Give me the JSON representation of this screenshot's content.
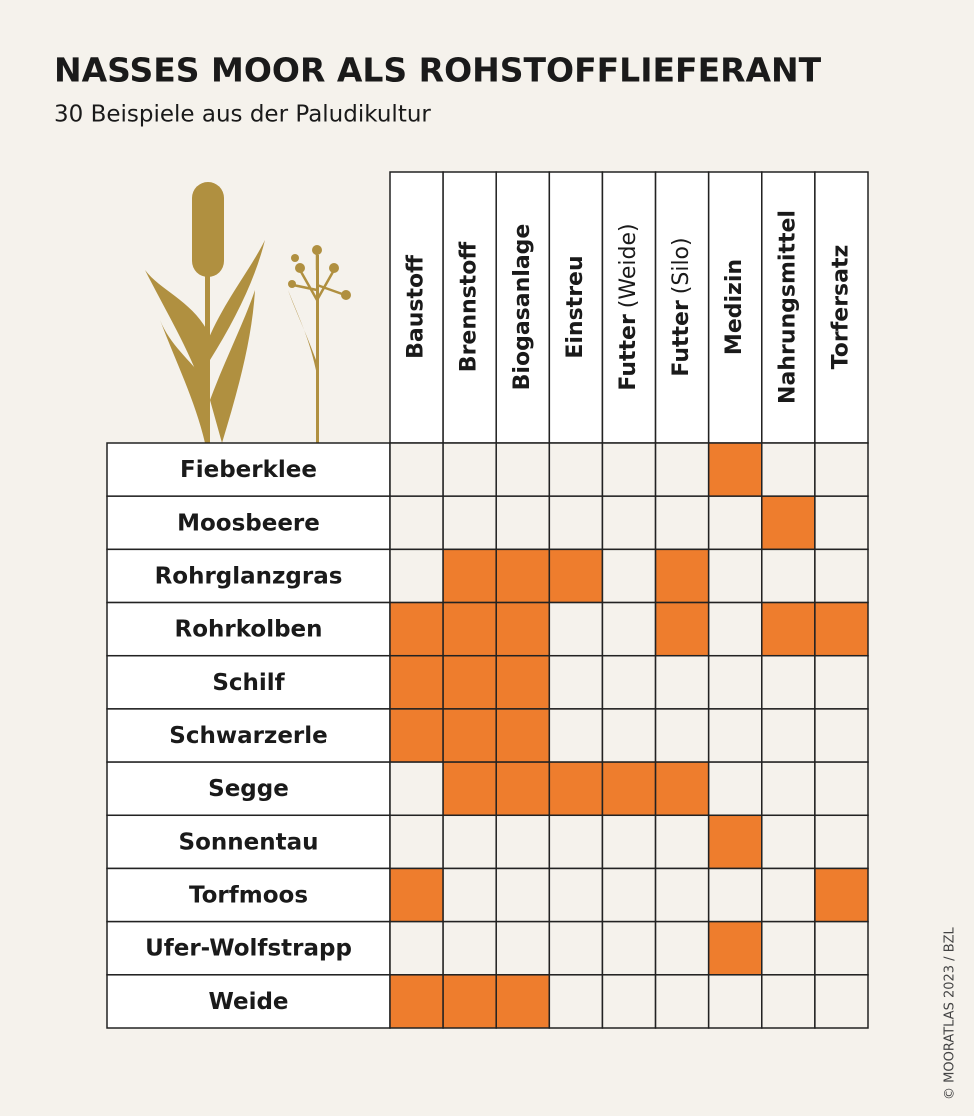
{
  "header": {
    "title": "NASSES MOOR ALS ROHSTOFFLIEFERANT",
    "subtitle": "30 Beispiele aus der Paludikultur"
  },
  "table": {
    "columns": [
      {
        "name": "Baustoff"
      },
      {
        "name": "Brennstoff"
      },
      {
        "name": "Biogasanlage"
      },
      {
        "name": "Einstreu"
      },
      {
        "name": "Futter",
        "qualifier": "(Weide)"
      },
      {
        "name": "Futter",
        "qualifier": "(Silo)"
      },
      {
        "name": "Medizin"
      },
      {
        "name": "Nahrungsmittel"
      },
      {
        "name": "Torfersatz"
      }
    ],
    "rows": [
      {
        "label": "Fieberklee",
        "cells": [
          0,
          0,
          0,
          0,
          0,
          0,
          1,
          0,
          0
        ]
      },
      {
        "label": "Moosbeere",
        "cells": [
          0,
          0,
          0,
          0,
          0,
          0,
          0,
          1,
          0
        ]
      },
      {
        "label": "Rohrglanzgras",
        "cells": [
          0,
          1,
          1,
          1,
          0,
          1,
          0,
          0,
          0
        ]
      },
      {
        "label": "Rohrkolben",
        "cells": [
          1,
          1,
          1,
          0,
          0,
          1,
          0,
          1,
          1
        ]
      },
      {
        "label": "Schilf",
        "cells": [
          1,
          1,
          1,
          0,
          0,
          0,
          0,
          0,
          0
        ]
      },
      {
        "label": "Schwarzerle",
        "cells": [
          1,
          1,
          1,
          0,
          0,
          0,
          0,
          0,
          0
        ]
      },
      {
        "label": "Segge",
        "cells": [
          0,
          1,
          1,
          1,
          1,
          1,
          0,
          0,
          0
        ]
      },
      {
        "label": "Sonnentau",
        "cells": [
          0,
          0,
          0,
          0,
          0,
          0,
          1,
          0,
          0
        ]
      },
      {
        "label": "Torfmoos",
        "cells": [
          1,
          0,
          0,
          0,
          0,
          0,
          0,
          0,
          1
        ]
      },
      {
        "label": "Ufer-Wolfstrapp",
        "cells": [
          0,
          0,
          0,
          0,
          0,
          0,
          1,
          0,
          0
        ]
      },
      {
        "label": "Weide",
        "cells": [
          1,
          1,
          1,
          0,
          0,
          0,
          0,
          0,
          0
        ]
      }
    ]
  },
  "credit": "© MOORATLAS 2023 / BZL"
}
